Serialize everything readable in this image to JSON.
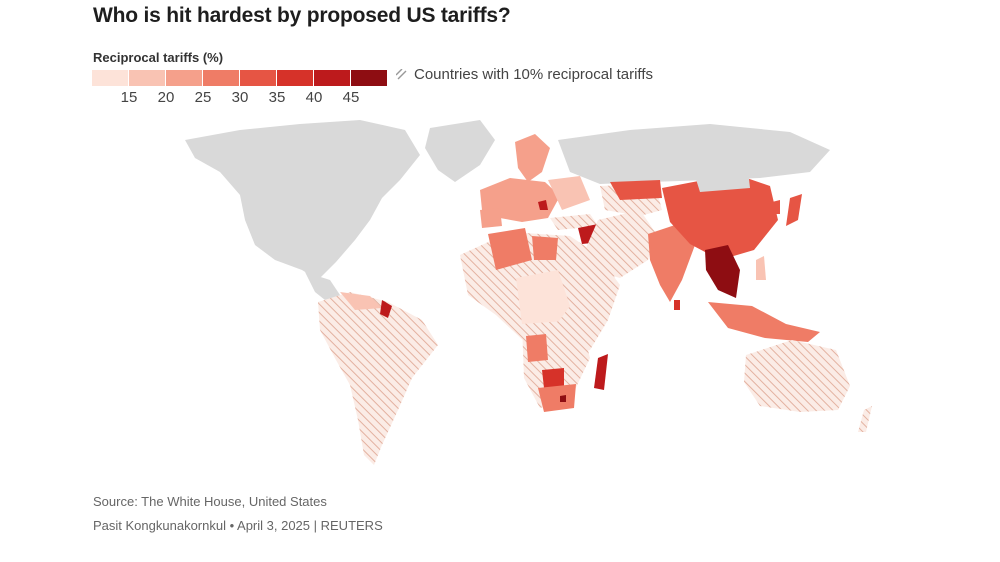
{
  "title": "Who is hit hardest by proposed US tariffs?",
  "legend": {
    "title": "Reciprocal tariffs (%)",
    "ticks": [
      "15",
      "20",
      "25",
      "30",
      "35",
      "40",
      "45"
    ],
    "colors": [
      "#fde3d9",
      "#f9c3b3",
      "#f5a08b",
      "#ef7c66",
      "#e65544",
      "#d63229",
      "#bd1a1c",
      "#8e0d12"
    ],
    "hatch_label": "Countries with 10% reciprocal tariffs",
    "hatch_color": "#e8b8a8"
  },
  "map_colors": {
    "no_data": "#d9d9d9",
    "hatch_bg": "#fbece6",
    "hatch_line": "#e3b1a0"
  },
  "footer": {
    "source": "Source: The White House, United States",
    "credit": "Pasit Kongkunakornkul • April 3, 2025 | REUTERS"
  }
}
